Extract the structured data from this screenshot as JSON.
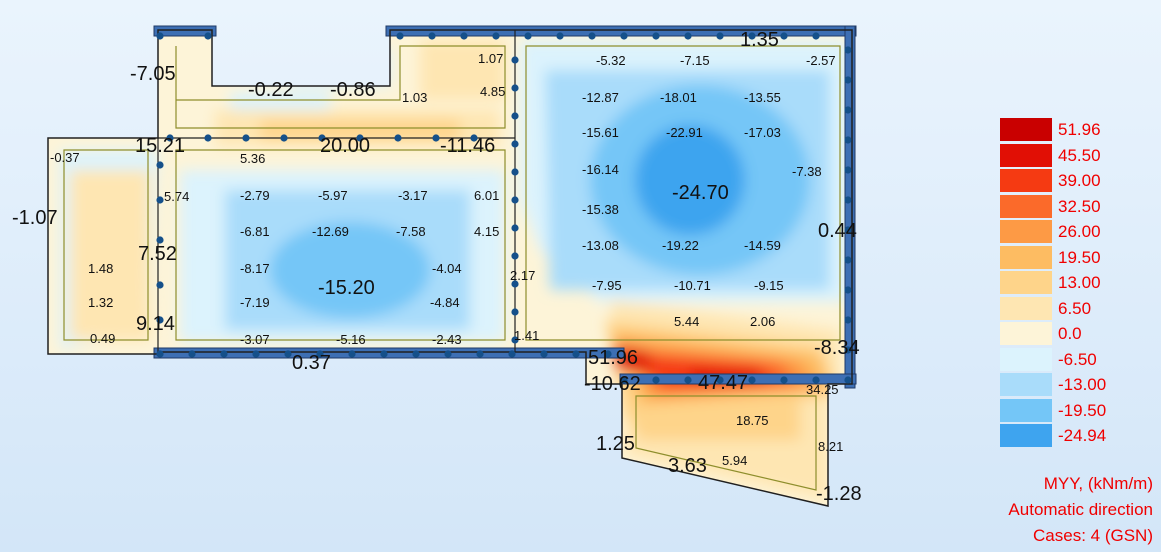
{
  "colors": {
    "background_top": "#eaf4fd",
    "background_bottom": "#d3e6f8",
    "accent_red": "#f00000",
    "node_dot": "#15508a",
    "wall_beam": "#3d6fb4",
    "outline": "#202020",
    "inner_line": "#8e8e2c"
  },
  "legend": {
    "values": [
      "51.96",
      "45.50",
      "39.00",
      "32.50",
      "26.00",
      "19.50",
      "13.00",
      "6.50",
      "0.0",
      "-6.50",
      "-13.00",
      "-19.50",
      "-24.94"
    ],
    "colors": [
      "#c90000",
      "#e10f05",
      "#f53a12",
      "#fb6a2a",
      "#fd9a45",
      "#fdbc62",
      "#fed48a",
      "#fee6b2",
      "#fdf4d8",
      "#dcf3fd",
      "#a9dcfa",
      "#74c6f7",
      "#3ea4ef"
    ]
  },
  "caption": {
    "quantity": "MYY, (kNm/m)",
    "direction": "Automatic direction",
    "cases": "Cases: 4 (GSN)"
  },
  "slab_labels": [
    {
      "text": "1.35",
      "size": "large"
    },
    {
      "text": "-7.05",
      "size": "large"
    },
    {
      "text": "-0.22",
      "size": "large"
    },
    {
      "text": "-0.86",
      "size": "large"
    },
    {
      "text": "1.03",
      "size": "small"
    },
    {
      "text": "1.07",
      "size": "small"
    },
    {
      "text": "4.85",
      "size": "small"
    },
    {
      "text": "15.21",
      "size": "large"
    },
    {
      "text": "20.00",
      "size": "large"
    },
    {
      "text": "-11.46",
      "size": "large"
    },
    {
      "text": "-0.37",
      "size": "small"
    },
    {
      "text": "5.36",
      "size": "small"
    },
    {
      "text": "5.74",
      "size": "small"
    },
    {
      "text": "-2.79",
      "size": "small"
    },
    {
      "text": "-5.97",
      "size": "small"
    },
    {
      "text": "-3.17",
      "size": "small"
    },
    {
      "text": "6.01",
      "size": "small"
    },
    {
      "text": "-1.07",
      "size": "large"
    },
    {
      "text": "-6.81",
      "size": "small"
    },
    {
      "text": "-12.69",
      "size": "small"
    },
    {
      "text": "-7.58",
      "size": "small"
    },
    {
      "text": "4.15",
      "size": "small"
    },
    {
      "text": "7.52",
      "size": "large"
    },
    {
      "text": "1.48",
      "size": "small"
    },
    {
      "text": "-8.17",
      "size": "small"
    },
    {
      "text": "-4.04",
      "size": "small"
    },
    {
      "text": "2.17",
      "size": "small"
    },
    {
      "text": "-15.20",
      "size": "large"
    },
    {
      "text": "1.32",
      "size": "small"
    },
    {
      "text": "-7.19",
      "size": "small"
    },
    {
      "text": "-4.84",
      "size": "small"
    },
    {
      "text": "9.14",
      "size": "large"
    },
    {
      "text": "0.49",
      "size": "small"
    },
    {
      "text": "-3.07",
      "size": "small"
    },
    {
      "text": "-5.16",
      "size": "small"
    },
    {
      "text": "-2.43",
      "size": "small"
    },
    {
      "text": "1.41",
      "size": "small"
    },
    {
      "text": "0.37",
      "size": "large"
    },
    {
      "text": "-5.32",
      "size": "small"
    },
    {
      "text": "-7.15",
      "size": "small"
    },
    {
      "text": "-2.57",
      "size": "small"
    },
    {
      "text": "-12.87",
      "size": "small"
    },
    {
      "text": "-18.01",
      "size": "small"
    },
    {
      "text": "-13.55",
      "size": "small"
    },
    {
      "text": "-15.61",
      "size": "small"
    },
    {
      "text": "-22.91",
      "size": "small"
    },
    {
      "text": "-17.03",
      "size": "small"
    },
    {
      "text": "-16.14",
      "size": "small"
    },
    {
      "text": "-7.38",
      "size": "small"
    },
    {
      "text": "-24.70",
      "size": "large"
    },
    {
      "text": "-15.38",
      "size": "small"
    },
    {
      "text": "0.44",
      "size": "large"
    },
    {
      "text": "-13.08",
      "size": "small"
    },
    {
      "text": "-19.22",
      "size": "small"
    },
    {
      "text": "-14.59",
      "size": "small"
    },
    {
      "text": "-7.95",
      "size": "small"
    },
    {
      "text": "-10.71",
      "size": "small"
    },
    {
      "text": "-9.15",
      "size": "small"
    },
    {
      "text": "5.44",
      "size": "small"
    },
    {
      "text": "2.06",
      "size": "small"
    },
    {
      "text": "-8.34",
      "size": "large"
    },
    {
      "text": "51.96",
      "size": "large"
    },
    {
      "text": "-10.62",
      "size": "large"
    },
    {
      "text": "47.47",
      "size": "large"
    },
    {
      "text": "34.25",
      "size": "small"
    },
    {
      "text": "18.75",
      "size": "small"
    },
    {
      "text": "1.25",
      "size": "large"
    },
    {
      "text": "8.21",
      "size": "small"
    },
    {
      "text": "3.63",
      "size": "large"
    },
    {
      "text": "5.94",
      "size": "small"
    },
    {
      "text": "-1.28",
      "size": "large"
    }
  ]
}
